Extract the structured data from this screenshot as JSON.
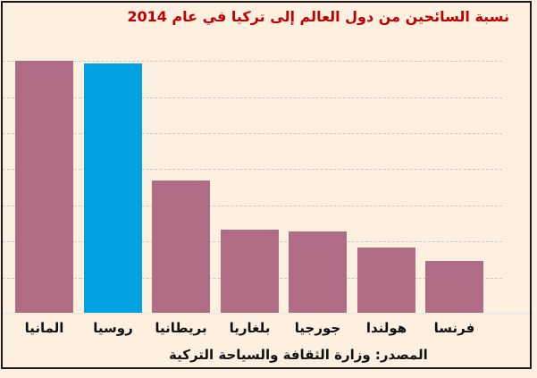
{
  "title": "نسبة السائحين من دول العالم إلى تركيا في عام 2014",
  "source_note": "المصدر: وزارة الثقافة والسياحة التركية",
  "colors": {
    "background": "#fdf0e1",
    "frame_border": "#1a1a1a",
    "title_text": "#c00000",
    "bar_default": "#b06c85",
    "bar_highlight": "#00a2e2",
    "gridline": "#c9c9c9",
    "axis_baseline": "#edeae2",
    "label_text": "#111111"
  },
  "chart_data": {
    "type": "bar",
    "title": "نسبة السائحين من دول العالم إلى تركيا في عام 2014",
    "categories": [
      "المانيا",
      "روسيا",
      "بريطانيا",
      "بلغاريا",
      "جورجيا",
      "هولندا",
      "فرنسا"
    ],
    "categories_en": [
      "germany",
      "russia",
      "britain",
      "bulgaria",
      "georgia",
      "netherlands",
      "france"
    ],
    "values": [
      7.0,
      6.93,
      3.7,
      2.33,
      2.27,
      1.82,
      1.45
    ],
    "value_units": "gridline units (y-axis has no tick labels; 7 dashed horizontal gridlines visible)",
    "highlighted_index": 1,
    "highlight_meaning": "Russia bar shown in blue, all others mauve",
    "xlabel": "",
    "ylabel": "",
    "ylim": [
      0,
      7.5
    ],
    "legend": false,
    "grid": "horizontal-dashed",
    "direction": "rtl",
    "source_note": "المصدر: وزارة الثقافة والسياحة التركية"
  }
}
